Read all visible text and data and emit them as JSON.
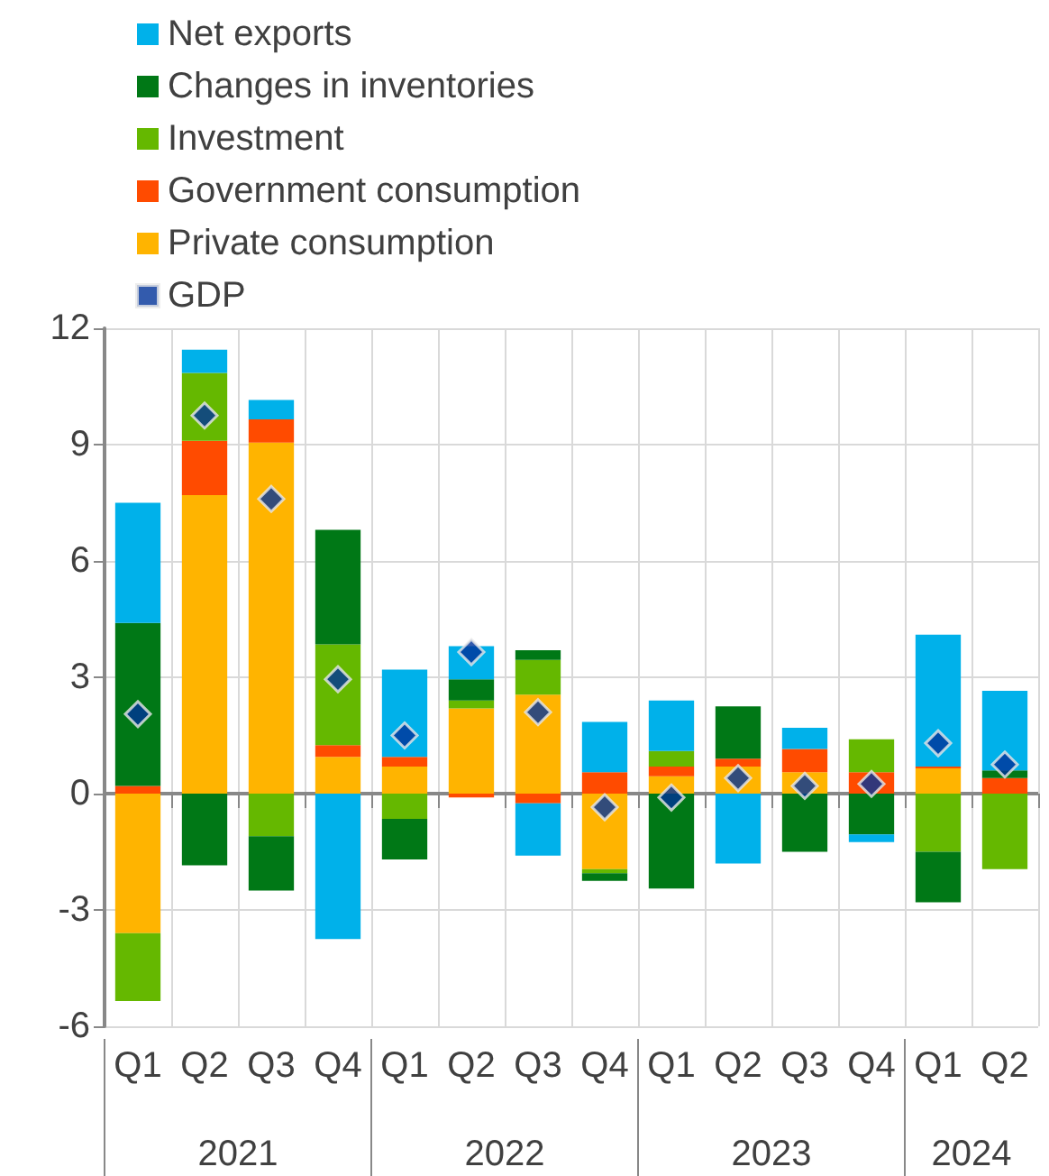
{
  "chart_data": {
    "type": "bar",
    "stacked": true,
    "categories": [
      "Q1",
      "Q2",
      "Q3",
      "Q4",
      "Q1",
      "Q2",
      "Q3",
      "Q4",
      "Q1",
      "Q2",
      "Q3",
      "Q4",
      "Q1",
      "Q2"
    ],
    "series": [
      {
        "name": "Private consumption",
        "color": "#ffb400",
        "values": [
          -3.6,
          7.7,
          9.05,
          0.95,
          0.7,
          2.2,
          2.55,
          -1.95,
          0.45,
          0.7,
          0.55,
          null,
          0.65,
          null
        ]
      },
      {
        "name": "Government consumption",
        "color": "#ff4b00",
        "values": [
          0.2,
          1.4,
          0.6,
          0.3,
          0.25,
          -0.1,
          -0.25,
          0.55,
          0.25,
          0.2,
          0.6,
          0.55,
          0.05,
          0.4
        ]
      },
      {
        "name": "Investment",
        "color": "#65b800",
        "values": [
          -1.75,
          1.75,
          -1.1,
          2.6,
          -0.65,
          0.2,
          0.9,
          -0.1,
          0.4,
          0,
          0,
          0.85,
          -1.5,
          -1.95
        ]
      },
      {
        "name": "Changes in inventories",
        "color": "#007816",
        "values": [
          4.2,
          -1.85,
          -1.4,
          2.95,
          -1.05,
          0.55,
          0.25,
          -0.2,
          -2.45,
          1.35,
          -1.5,
          -1.05,
          -1.3,
          0.2
        ]
      },
      {
        "name": "Net exports",
        "color": "#00b1ea",
        "values": [
          3.1,
          0.6,
          0.5,
          -3.75,
          2.25,
          0.85,
          -1.35,
          1.3,
          1.3,
          -1.8,
          0.55,
          -0.2,
          3.4,
          2.05
        ]
      },
      {
        "name": "GDP",
        "type": "scatter",
        "marker": "diamond",
        "color": "#003299",
        "values": [
          2.05,
          9.75,
          7.6,
          2.95,
          1.5,
          3.65,
          2.1,
          -0.35,
          -0.1,
          0.4,
          0.2,
          0.25,
          1.3,
          0.75
        ]
      }
    ],
    "ylim": [
      -6,
      12
    ],
    "yticks": [
      -6,
      -3,
      0,
      3,
      6,
      9,
      12
    ],
    "grid": true,
    "legend": "top left",
    "annotations": [
      "2021",
      "2022",
      "2023",
      "2024"
    ]
  }
}
